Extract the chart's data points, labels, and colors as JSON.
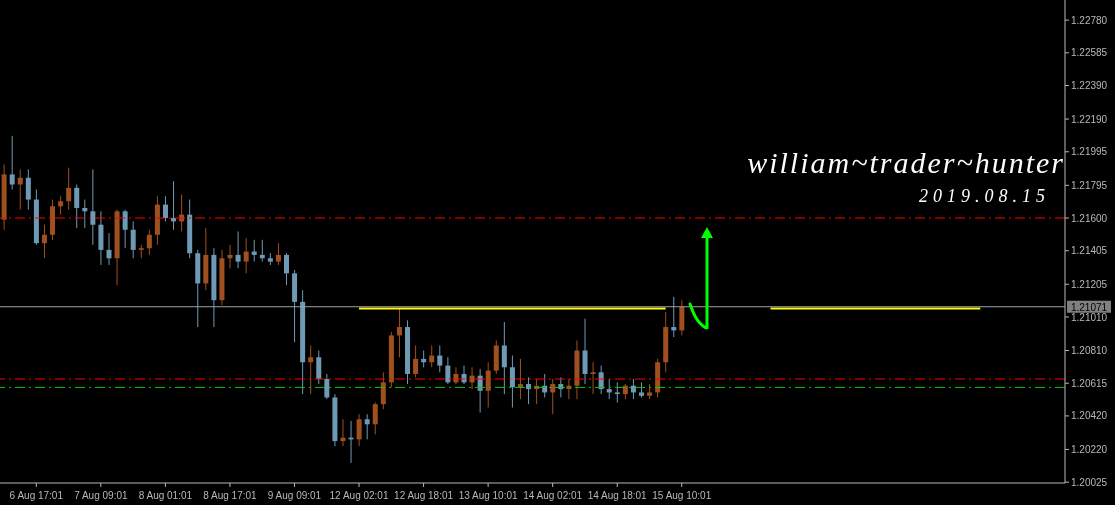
{
  "chart_data": {
    "type": "candlestick",
    "annotations": [
      "william~trader~hunter",
      "2019.08.15"
    ],
    "categories": [
      null,
      null,
      null,
      null,
      "6 Aug 17:01",
      null,
      null,
      null,
      null,
      null,
      null,
      null,
      "7 Aug 09:01",
      null,
      null,
      null,
      null,
      null,
      null,
      null,
      "8 Aug 01:01",
      null,
      null,
      null,
      null,
      null,
      null,
      null,
      "8 Aug 17:01",
      null,
      null,
      null,
      null,
      null,
      null,
      null,
      "9 Aug 09:01",
      null,
      null,
      null,
      null,
      null,
      null,
      null,
      "12 Aug 02:01",
      null,
      null,
      null,
      null,
      null,
      null,
      null,
      "12 Aug 18:01",
      null,
      null,
      null,
      null,
      null,
      null,
      null,
      "13 Aug 10:01",
      null,
      null,
      null,
      null,
      null,
      null,
      null,
      "14 Aug 02:01",
      null,
      null,
      null,
      null,
      null,
      null,
      null,
      "14 Aug 18:01",
      null,
      null,
      null,
      null,
      null,
      null,
      null,
      "15 Aug 10:01",
      null,
      null,
      null,
      null,
      null,
      null,
      null,
      null,
      null,
      null,
      null,
      null,
      null,
      null,
      null,
      null,
      null,
      null,
      null,
      null,
      null,
      null,
      null,
      null,
      null,
      null,
      null,
      null,
      null,
      null,
      null,
      null,
      null,
      null,
      null,
      null,
      null,
      null,
      null,
      null,
      null,
      null,
      null,
      null,
      null,
      null,
      null
    ],
    "ohlc": [
      [
        1.2159,
        1.2192,
        1.2153,
        1.2186
      ],
      [
        1.2186,
        1.2209,
        1.2177,
        1.218
      ],
      [
        1.218,
        1.2189,
        1.2165,
        1.2184
      ],
      [
        1.2184,
        1.2189,
        1.2165,
        1.2171
      ],
      [
        1.2171,
        1.2177,
        1.2144,
        1.2145
      ],
      [
        1.2145,
        1.2156,
        1.2136,
        1.215
      ],
      [
        1.215,
        1.2171,
        1.2147,
        1.2167
      ],
      [
        1.2167,
        1.2173,
        1.2162,
        1.217
      ],
      [
        1.217,
        1.219,
        1.2165,
        1.2178
      ],
      [
        1.2178,
        1.218,
        1.2154,
        1.2166
      ],
      [
        1.2166,
        1.2171,
        1.2154,
        1.2164
      ],
      [
        1.2164,
        1.2189,
        1.2144,
        1.2156
      ],
      [
        1.2156,
        1.2164,
        1.2132,
        1.2141
      ],
      [
        1.2141,
        1.2151,
        1.2132,
        1.2136
      ],
      [
        1.2136,
        1.2165,
        1.212,
        1.2164
      ],
      [
        1.2164,
        1.2165,
        1.2142,
        1.2153
      ],
      [
        1.2153,
        1.2158,
        1.2136,
        1.2141
      ],
      [
        1.2141,
        1.2144,
        1.2136,
        1.2142
      ],
      [
        1.2142,
        1.2153,
        1.2138,
        1.215
      ],
      [
        1.215,
        1.2173,
        1.2144,
        1.2168
      ],
      [
        1.2168,
        1.2173,
        1.2158,
        1.216
      ],
      [
        1.216,
        1.2182,
        1.2153,
        1.2158
      ],
      [
        1.2158,
        1.2174,
        1.2152,
        1.2162
      ],
      [
        1.2162,
        1.2171,
        1.2136,
        1.2139
      ],
      [
        1.2139,
        1.2141,
        1.2095,
        1.2121
      ],
      [
        1.2121,
        1.2154,
        1.2117,
        1.2138
      ],
      [
        1.2138,
        1.2142,
        1.2095,
        1.2111
      ],
      [
        1.2111,
        1.2141,
        1.2108,
        1.2136
      ],
      [
        1.2136,
        1.2144,
        1.213,
        1.2138
      ],
      [
        1.2138,
        1.2152,
        1.213,
        1.2134
      ],
      [
        1.2134,
        1.2148,
        1.2127,
        1.214
      ],
      [
        1.214,
        1.2147,
        1.2134,
        1.2138
      ],
      [
        1.2138,
        1.2147,
        1.2134,
        1.2136
      ],
      [
        1.2136,
        1.2139,
        1.2132,
        1.2134
      ],
      [
        1.2134,
        1.2145,
        1.2132,
        1.2138
      ],
      [
        1.2138,
        1.2139,
        1.212,
        1.2127
      ],
      [
        1.2127,
        1.2129,
        1.2086,
        1.211
      ],
      [
        1.211,
        1.2117,
        1.2055,
        1.2074
      ],
      [
        1.2074,
        1.2084,
        1.2055,
        1.2077
      ],
      [
        1.2077,
        1.2081,
        1.2061,
        1.2064
      ],
      [
        1.2064,
        1.2067,
        1.2052,
        1.2053
      ],
      [
        1.2053,
        1.2055,
        1.2024,
        1.2027
      ],
      [
        1.2027,
        1.204,
        1.2024,
        1.2029
      ],
      [
        1.2029,
        1.2039,
        1.2014,
        1.2028
      ],
      [
        1.2028,
        1.2043,
        1.2024,
        1.204
      ],
      [
        1.204,
        1.2043,
        1.2028,
        1.2037
      ],
      [
        1.2037,
        1.205,
        1.2031,
        1.2049
      ],
      [
        1.2049,
        1.2068,
        1.2046,
        1.2062
      ],
      [
        1.2062,
        1.2092,
        1.2059,
        1.209
      ],
      [
        1.209,
        1.2106,
        1.2077,
        1.2095
      ],
      [
        1.2095,
        1.2099,
        1.2061,
        1.2067
      ],
      [
        1.2067,
        1.2084,
        1.2065,
        1.2076
      ],
      [
        1.2076,
        1.2081,
        1.2071,
        1.2074
      ],
      [
        1.2074,
        1.2084,
        1.2071,
        1.2078
      ],
      [
        1.2078,
        1.2084,
        1.2068,
        1.2072
      ],
      [
        1.2072,
        1.2077,
        1.2061,
        1.2062
      ],
      [
        1.2062,
        1.2071,
        1.2061,
        1.2067
      ],
      [
        1.2067,
        1.2072,
        1.2061,
        1.2062
      ],
      [
        1.2062,
        1.2071,
        1.2058,
        1.2066
      ],
      [
        1.2066,
        1.207,
        1.2044,
        1.2057
      ],
      [
        1.2057,
        1.2074,
        1.2047,
        1.2069
      ],
      [
        1.2069,
        1.2087,
        1.2067,
        1.2084
      ],
      [
        1.2084,
        1.2098,
        1.2055,
        1.2071
      ],
      [
        1.2071,
        1.2078,
        1.2047,
        1.2059
      ],
      [
        1.2059,
        1.2076,
        1.2052,
        1.2061
      ],
      [
        1.2061,
        1.2065,
        1.2049,
        1.2058
      ],
      [
        1.2058,
        1.2064,
        1.2049,
        1.206
      ],
      [
        1.206,
        1.2067,
        1.2053,
        1.2056
      ],
      [
        1.2056,
        1.2064,
        1.2043,
        1.2061
      ],
      [
        1.2061,
        1.2065,
        1.2053,
        1.2058
      ],
      [
        1.2058,
        1.2064,
        1.2052,
        1.206
      ],
      [
        1.206,
        1.2087,
        1.2052,
        1.2081
      ],
      [
        1.2081,
        1.21,
        1.2061,
        1.2067
      ],
      [
        1.2067,
        1.2074,
        1.2055,
        1.2068
      ],
      [
        1.2068,
        1.2072,
        1.2055,
        1.2058
      ],
      [
        1.2058,
        1.2064,
        1.2052,
        1.2056
      ],
      [
        1.2056,
        1.2062,
        1.205,
        1.2055
      ],
      [
        1.2055,
        1.2061,
        1.2052,
        1.206
      ],
      [
        1.206,
        1.2064,
        1.2052,
        1.2056
      ],
      [
        1.2056,
        1.2062,
        1.2053,
        1.2054
      ],
      [
        1.2054,
        1.2061,
        1.2052,
        1.2056
      ],
      [
        1.2056,
        1.2076,
        1.2053,
        1.2074
      ],
      [
        1.2074,
        1.2104,
        1.2068,
        1.2095
      ],
      [
        1.2095,
        1.2113,
        1.2089,
        1.2093
      ],
      [
        1.2093,
        1.2111,
        1.209,
        1.2107
      ],
      null,
      null,
      null,
      null,
      null,
      null,
      null,
      null,
      null,
      null,
      null,
      null,
      null,
      null,
      null,
      null,
      null,
      null,
      null,
      null,
      null,
      null,
      null,
      null,
      null,
      null,
      null,
      null,
      null,
      null,
      null,
      null,
      null,
      null,
      null,
      null,
      null,
      null,
      null,
      null,
      null,
      null,
      null,
      null,
      null,
      null,
      null
    ],
    "series": [
      {
        "type": "line",
        "color": "#ffff00",
        "values": [
          null,
          null,
          null,
          null,
          null,
          null,
          null,
          null,
          null,
          null,
          null,
          null,
          null,
          null,
          null,
          null,
          null,
          null,
          null,
          null,
          null,
          null,
          null,
          null,
          null,
          null,
          null,
          null,
          null,
          null,
          null,
          null,
          null,
          null,
          null,
          null,
          null,
          null,
          null,
          null,
          null,
          null,
          null,
          null,
          1.2106,
          1.2106,
          1.2106,
          1.2106,
          1.2106,
          1.2106,
          1.2106,
          1.2106,
          1.2106,
          1.2106,
          1.2106,
          1.2106,
          1.2106,
          1.2106,
          1.2106,
          1.2106,
          1.2106,
          1.2106,
          1.2106,
          1.2106,
          1.2106,
          1.2106,
          1.2106,
          1.2106,
          1.2106,
          1.2106,
          1.2106,
          1.2106,
          1.2106,
          1.2106,
          1.2106,
          1.2106,
          1.2106,
          1.2106,
          1.2106,
          1.2106,
          1.2106,
          1.2106,
          1.2106,
          null,
          null,
          null,
          null,
          null,
          null,
          null,
          null,
          null,
          null,
          null,
          null,
          1.2106,
          1.2106,
          1.2106,
          1.2106,
          1.2106,
          1.2106,
          1.2106,
          1.2106,
          1.2106,
          1.2106,
          1.2106,
          1.2106,
          1.2106,
          1.2106,
          1.2106,
          1.2106,
          1.2106,
          1.2106,
          1.2106,
          1.2106,
          1.2106,
          1.2106,
          1.2106,
          1.2106,
          1.2106,
          1.2106,
          1.2106,
          null,
          null,
          null,
          null,
          null,
          null,
          null,
          null,
          null,
          null
        ]
      }
    ],
    "ylim": [
      1.2002,
      1.229
    ],
    "yticks": [
      {
        "value": 1.2278,
        "label": "1.22780"
      },
      1.22585,
      {
        "value": 1.2239,
        "label": "1.22390"
      },
      {
        "value": 1.2219,
        "label": "1.22190"
      },
      1.21995,
      1.21795,
      {
        "value": 1.216,
        "label": "1.21600"
      },
      1.21405,
      1.21205,
      {
        "value": 1.2101,
        "label": "1.21010"
      },
      {
        "value": 1.2081,
        "label": "1.20810"
      },
      1.20615,
      {
        "value": 1.2042,
        "label": "1.20420"
      },
      {
        "value": 1.2022,
        "label": "1.20220"
      },
      1.20025
    ],
    "ref_lines": [
      {
        "axis": "y",
        "value": 1.216,
        "color": "#ff0000",
        "line_style": "dashed"
      },
      {
        "axis": "y",
        "value": 1.2064,
        "color": "#ff0000",
        "line_style": "dashed"
      },
      {
        "axis": "y",
        "value": 1.2059,
        "color": "#00cc00",
        "line_style": "dashed"
      },
      {
        "axis": "y",
        "value": 1.21071,
        "label": "1.21071",
        "color": "#a0a0a0",
        "line_style": "solid"
      }
    ]
  }
}
